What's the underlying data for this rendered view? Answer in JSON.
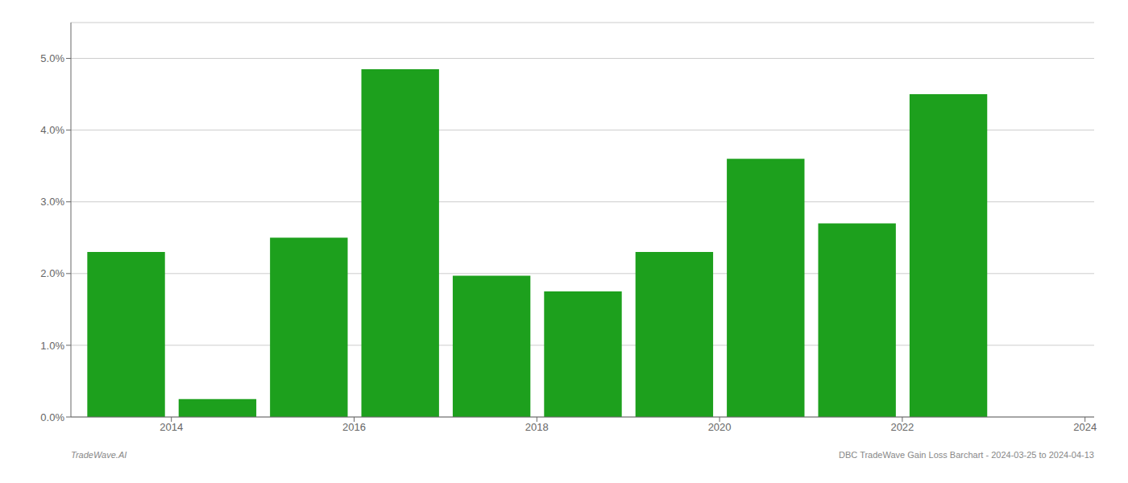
{
  "chart_data": {
    "type": "bar",
    "x": [
      2014,
      2015,
      2016,
      2017,
      2018,
      2019,
      2020,
      2021,
      2022,
      2023
    ],
    "values": [
      0.023,
      0.0025,
      0.025,
      0.0485,
      0.0197,
      0.0175,
      0.023,
      0.036,
      0.027,
      0.045
    ],
    "color": "#1da01d",
    "xlim": [
      2013.4,
      2024.6
    ],
    "xticks": [
      {
        "value": 2014.5,
        "label": "2014"
      },
      {
        "value": 2016.5,
        "label": "2016"
      },
      {
        "value": 2018.5,
        "label": "2018"
      },
      {
        "value": 2020.5,
        "label": "2020"
      },
      {
        "value": 2022.5,
        "label": "2022"
      },
      {
        "value": 2024.5,
        "label": "2024"
      }
    ],
    "ylim": [
      0.0,
      0.055
    ],
    "yticks": [
      {
        "value": 0.0,
        "label": "0.0%"
      },
      {
        "value": 0.01,
        "label": "1.0%"
      },
      {
        "value": 0.02,
        "label": "2.0%"
      },
      {
        "value": 0.03,
        "label": "3.0%"
      },
      {
        "value": 0.04,
        "label": "4.0%"
      },
      {
        "value": 0.05,
        "label": "5.0%"
      }
    ],
    "grid": true,
    "annotations": [
      "TradeWave.AI",
      "DBC TradeWave Gain Loss Barchart - 2024-03-25 to 2024-04-13"
    ]
  }
}
